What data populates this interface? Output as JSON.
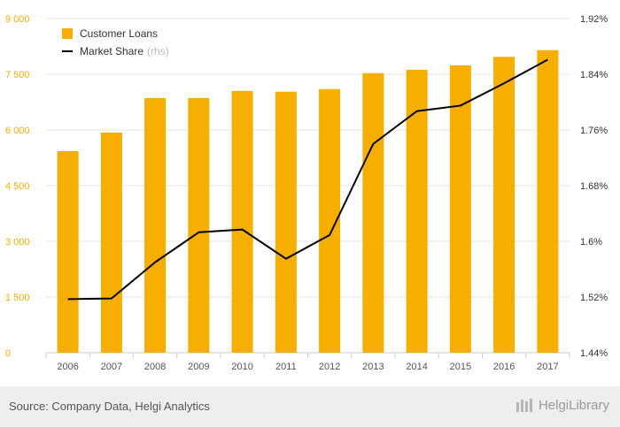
{
  "chart_data": {
    "type": "bar+line",
    "categories": [
      "2006",
      "2007",
      "2008",
      "2009",
      "2010",
      "2011",
      "2012",
      "2013",
      "2014",
      "2015",
      "2016",
      "2017"
    ],
    "series": [
      {
        "name": "Customer Loans",
        "type": "bar",
        "axis": "left",
        "color": "#F6AE00",
        "values": [
          5430,
          5930,
          6860,
          6860,
          7050,
          7030,
          7100,
          7530,
          7620,
          7740,
          7970,
          8150
        ]
      },
      {
        "name": "Market Share",
        "type": "line",
        "axis": "right",
        "color": "#000000",
        "values": [
          1.517,
          1.518,
          1.57,
          1.613,
          1.617,
          1.575,
          1.609,
          1.74,
          1.787,
          1.795,
          1.827,
          1.861
        ]
      }
    ],
    "y_left": {
      "range": [
        0,
        9000
      ],
      "ticks": [
        0,
        1500,
        3000,
        4500,
        6000,
        7500,
        9000
      ],
      "tick_labels": [
        "0",
        "1 500",
        "3 000",
        "4 500",
        "6 000",
        "7 500",
        "9 000"
      ],
      "label_color": "#F6AE00"
    },
    "y_right": {
      "range": [
        1.44,
        1.92
      ],
      "ticks": [
        1.44,
        1.52,
        1.6,
        1.68,
        1.76,
        1.84,
        1.92
      ],
      "tick_labels": [
        "1.44%",
        "1.52%",
        "1.6%",
        "1.68%",
        "1.76%",
        "1.84%",
        "1.92%"
      ]
    },
    "grid": true,
    "legend_position": "top-left"
  },
  "legend": {
    "loans_label": "Customer Loans",
    "share_label": "Market Share",
    "share_note": "(rhs)"
  },
  "footer": {
    "source": "Source: Company Data, Helgi Analytics",
    "logo_text": "HelgiLibrary"
  }
}
